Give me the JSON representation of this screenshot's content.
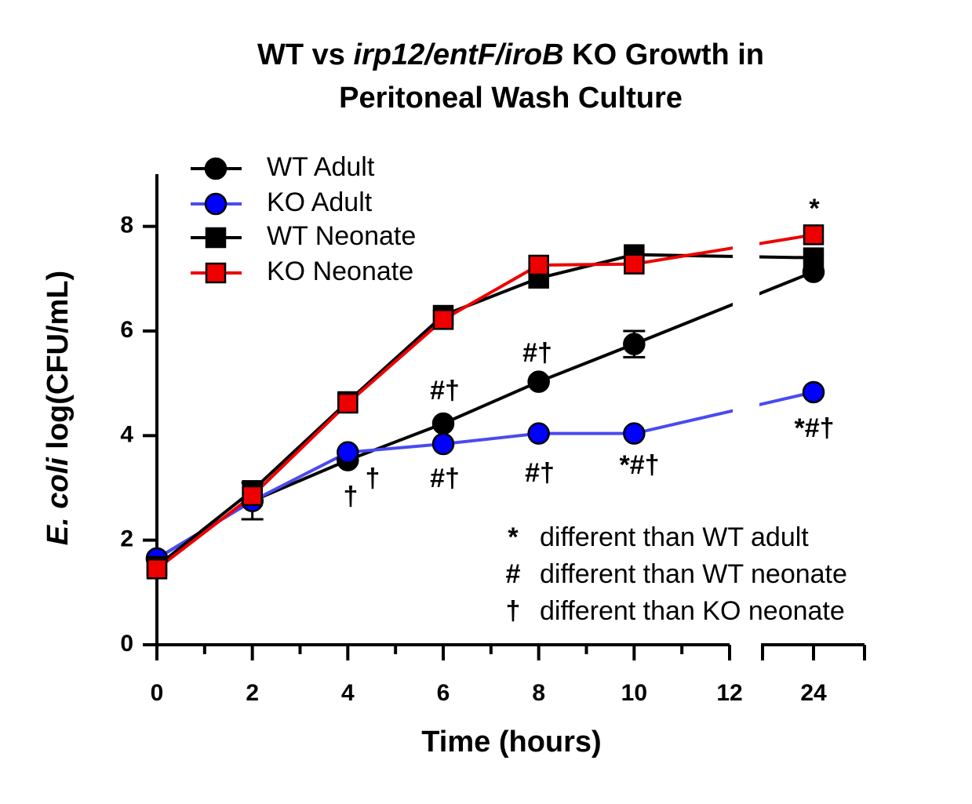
{
  "chart_data": {
    "type": "line",
    "title": [
      "WT vs ",
      "irp12/entF/iroB",
      " KO Growth in",
      "Peritoneal Wash Culture"
    ],
    "ylabel": [
      "E. coli",
      " log(CFU/mL)"
    ],
    "xlabel": "Time (hours)",
    "x": [
      0,
      2,
      4,
      6,
      8,
      10,
      24
    ],
    "x_segments": [
      {
        "xlim": [
          0,
          12
        ],
        "xticks": [
          0,
          2,
          4,
          6,
          8,
          10,
          12
        ],
        "xminorticks": [
          1,
          3,
          5,
          7,
          9,
          11
        ]
      },
      {
        "xlim": [
          23,
          25
        ],
        "xticks": [
          24
        ]
      }
    ],
    "ylim": [
      0,
      9
    ],
    "yticks": [
      0,
      2,
      4,
      6,
      8
    ],
    "series": [
      {
        "name": "WT Adult",
        "color": "#000000",
        "marker_color": "#000000",
        "marker": "circle",
        "values": [
          1.65,
          2.75,
          3.53,
          4.23,
          5.03,
          5.75,
          7.13
        ],
        "errors": [
          null,
          0.35,
          null,
          null,
          null,
          0.25,
          null
        ]
      },
      {
        "name": "KO Adult",
        "color": "#4a4af0",
        "marker_color": "#0000ff",
        "marker": "circle",
        "values": [
          1.65,
          2.75,
          3.68,
          3.84,
          4.04,
          4.04,
          4.83
        ]
      },
      {
        "name": "WT Neonate",
        "color": "#000000",
        "marker_color": "#000000",
        "marker": "square",
        "values": [
          1.5,
          2.95,
          4.65,
          6.3,
          7.01,
          7.46,
          7.4
        ]
      },
      {
        "name": "KO Neonate",
        "color": "#ee0000",
        "marker_color": "#ee0000",
        "marker": "square",
        "values": [
          1.45,
          2.85,
          4.62,
          6.22,
          7.26,
          7.28,
          7.84
        ]
      }
    ],
    "annotations": [
      "†",
      "†",
      "#†",
      "#†",
      "#†",
      "#†",
      "*#†",
      "*",
      "*#†"
    ],
    "notes": [
      {
        "symbol": "*",
        "text": "different than WT adult"
      },
      {
        "symbol": "#",
        "text": "different than WT neonate"
      },
      {
        "symbol": "†",
        "text": "different than KO neonate"
      }
    ]
  }
}
